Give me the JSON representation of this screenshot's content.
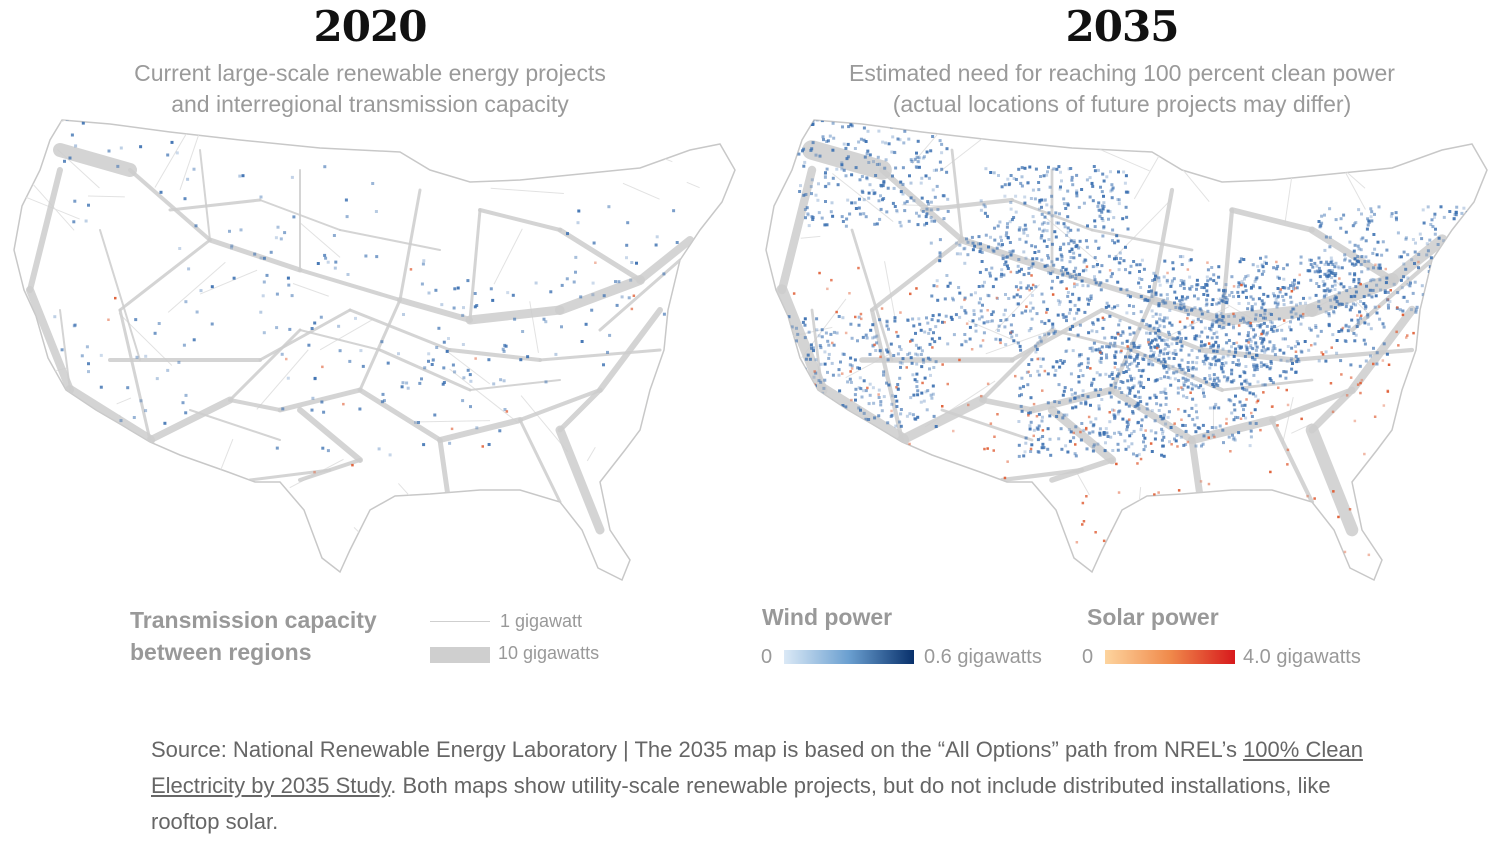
{
  "left_panel": {
    "year": "2020",
    "subtitle_line1": "Current large-scale renewable energy projects",
    "subtitle_line2": "and interregional transmission capacity"
  },
  "right_panel": {
    "year": "2035",
    "subtitle_line1": "Estimated need for reaching 100 percent clean power",
    "subtitle_line2": "(actual locations of future projects may differ)"
  },
  "legend": {
    "transmission": {
      "title_line1": "Transmission capacity",
      "title_line2": "between regions",
      "small_label": "1 gigawatt",
      "large_label": "10 gigawatts"
    },
    "wind": {
      "title": "Wind power",
      "min_label": "0",
      "max_label": "0.6 gigawatts",
      "color_low": "#dbe9f6",
      "color_high": "#08306b"
    },
    "solar": {
      "title": "Solar power",
      "min_label": "0",
      "max_label": "4.0 gigawatts",
      "color_low": "#fdd49e",
      "color_high": "#d7191c"
    }
  },
  "source": {
    "prefix": "Source: National Renewable Energy Laboratory | The 2035 map is based on the “All Options” path from NREL’s ",
    "link_text": "100% Clean Electricity by 2035 Study",
    "suffix": ". Both maps show utility-scale renewable projects, but do not include distributed installations, like rooftop solar."
  },
  "colors": {
    "transmission": "#cccccc",
    "outline": "#c8c8c8",
    "wind_cell": "#3a6fb0",
    "solar_cell": "#e0623a"
  }
}
